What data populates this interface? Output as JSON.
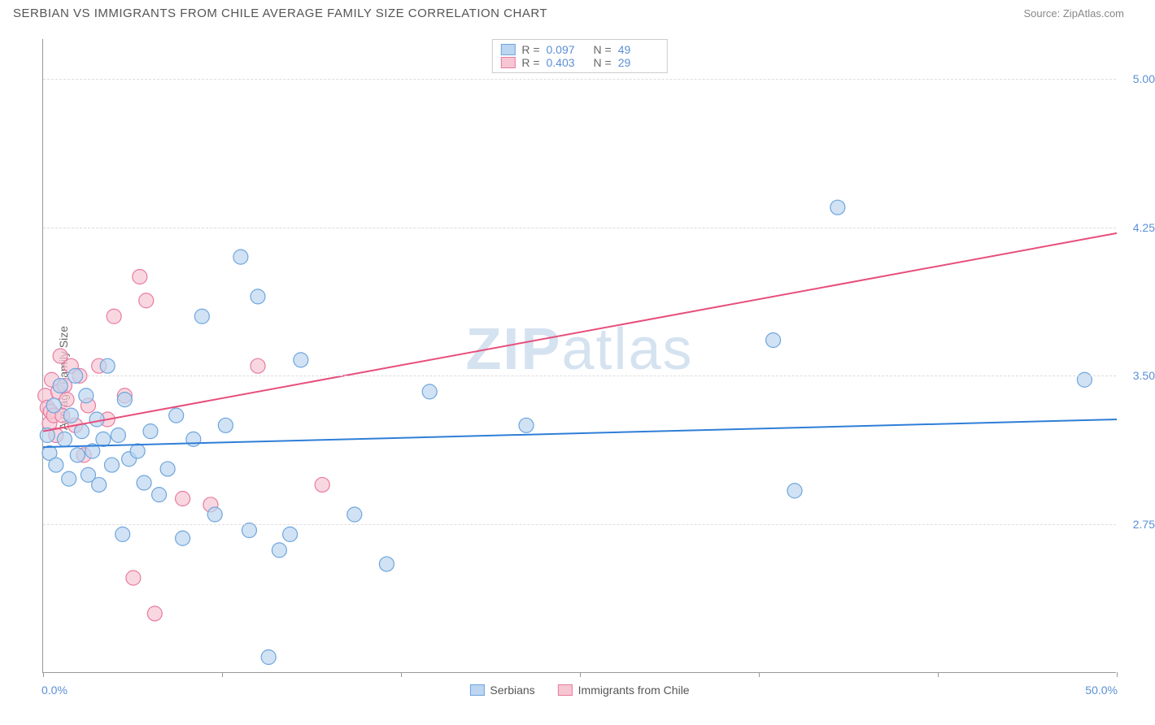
{
  "header": {
    "title": "SERBIAN VS IMMIGRANTS FROM CHILE AVERAGE FAMILY SIZE CORRELATION CHART",
    "source": "Source: ZipAtlas.com"
  },
  "chart": {
    "type": "scatter",
    "y_axis_label": "Average Family Size",
    "watermark": "ZIPatlas",
    "xlim": [
      0,
      50
    ],
    "ylim": [
      2.0,
      5.2
    ],
    "x_label_min": "0.0%",
    "x_label_max": "50.0%",
    "x_ticks": [
      0,
      8.33,
      16.67,
      25,
      33.33,
      41.67,
      50
    ],
    "y_ticks": [
      2.75,
      3.5,
      4.25,
      5.0
    ],
    "y_tick_labels": [
      "2.75",
      "3.50",
      "4.25",
      "5.00"
    ],
    "grid_color": "#dddddd",
    "axis_color": "#999999",
    "tick_label_color": "#5b8fd6",
    "background_color": "#ffffff",
    "series": {
      "serbians": {
        "label": "Serbians",
        "color_fill": "#bcd5f0",
        "color_stroke": "#6ea5dd",
        "marker_radius": 9,
        "fill_opacity": 0.7,
        "R": "0.097",
        "N": "49",
        "trend": {
          "x1": 0,
          "y1": 3.14,
          "x2": 50,
          "y2": 3.28,
          "color": "#2f7ed8",
          "width": 2
        },
        "points": [
          [
            0.2,
            3.2
          ],
          [
            0.3,
            3.11
          ],
          [
            0.5,
            3.35
          ],
          [
            0.6,
            3.05
          ],
          [
            0.8,
            3.45
          ],
          [
            1.0,
            3.18
          ],
          [
            1.2,
            2.98
          ],
          [
            1.3,
            3.3
          ],
          [
            1.5,
            3.5
          ],
          [
            1.6,
            3.1
          ],
          [
            1.8,
            3.22
          ],
          [
            2.0,
            3.4
          ],
          [
            2.1,
            3.0
          ],
          [
            2.3,
            3.12
          ],
          [
            2.5,
            3.28
          ],
          [
            2.6,
            2.95
          ],
          [
            2.8,
            3.18
          ],
          [
            3.0,
            3.55
          ],
          [
            3.2,
            3.05
          ],
          [
            3.5,
            3.2
          ],
          [
            3.7,
            2.7
          ],
          [
            3.8,
            3.38
          ],
          [
            4.0,
            3.08
          ],
          [
            4.4,
            3.12
          ],
          [
            4.7,
            2.96
          ],
          [
            5.0,
            3.22
          ],
          [
            5.4,
            2.9
          ],
          [
            5.8,
            3.03
          ],
          [
            6.2,
            3.3
          ],
          [
            6.5,
            2.68
          ],
          [
            7.0,
            3.18
          ],
          [
            7.4,
            3.8
          ],
          [
            8.0,
            2.8
          ],
          [
            8.5,
            3.25
          ],
          [
            9.2,
            4.1
          ],
          [
            9.6,
            2.72
          ],
          [
            10.0,
            3.9
          ],
          [
            10.5,
            2.08
          ],
          [
            11.0,
            2.62
          ],
          [
            11.5,
            2.7
          ],
          [
            12.0,
            3.58
          ],
          [
            14.5,
            2.8
          ],
          [
            16.0,
            2.55
          ],
          [
            18.0,
            3.42
          ],
          [
            22.5,
            3.25
          ],
          [
            34.0,
            3.68
          ],
          [
            35.0,
            2.92
          ],
          [
            37.0,
            4.35
          ],
          [
            48.5,
            3.48
          ]
        ]
      },
      "chile": {
        "label": "Immigrants from Chile",
        "color_fill": "#f6c6d3",
        "color_stroke": "#e87ba0",
        "marker_radius": 9,
        "fill_opacity": 0.7,
        "R": "0.403",
        "N": "29",
        "trend": {
          "x1": 0,
          "y1": 3.22,
          "x2": 50,
          "y2": 4.22,
          "color": "#e74e7b",
          "width": 2
        },
        "points": [
          [
            0.1,
            3.4
          ],
          [
            0.2,
            3.34
          ],
          [
            0.3,
            3.26
          ],
          [
            0.35,
            3.32
          ],
          [
            0.4,
            3.48
          ],
          [
            0.5,
            3.3
          ],
          [
            0.6,
            3.2
          ],
          [
            0.7,
            3.42
          ],
          [
            0.8,
            3.6
          ],
          [
            0.9,
            3.3
          ],
          [
            1.0,
            3.45
          ],
          [
            1.1,
            3.38
          ],
          [
            1.3,
            3.55
          ],
          [
            1.5,
            3.25
          ],
          [
            1.7,
            3.5
          ],
          [
            1.9,
            3.1
          ],
          [
            2.1,
            3.35
          ],
          [
            2.6,
            3.55
          ],
          [
            3.0,
            3.28
          ],
          [
            3.3,
            3.8
          ],
          [
            3.8,
            3.4
          ],
          [
            4.2,
            2.48
          ],
          [
            4.5,
            4.0
          ],
          [
            4.8,
            3.88
          ],
          [
            5.2,
            2.3
          ],
          [
            6.5,
            2.88
          ],
          [
            7.8,
            2.85
          ],
          [
            10.0,
            3.55
          ],
          [
            13.0,
            2.95
          ]
        ]
      }
    },
    "legend_top": [
      {
        "series": "serbians",
        "R_label": "R =",
        "N_label": "N ="
      },
      {
        "series": "chile",
        "R_label": "R =",
        "N_label": "N ="
      }
    ]
  }
}
